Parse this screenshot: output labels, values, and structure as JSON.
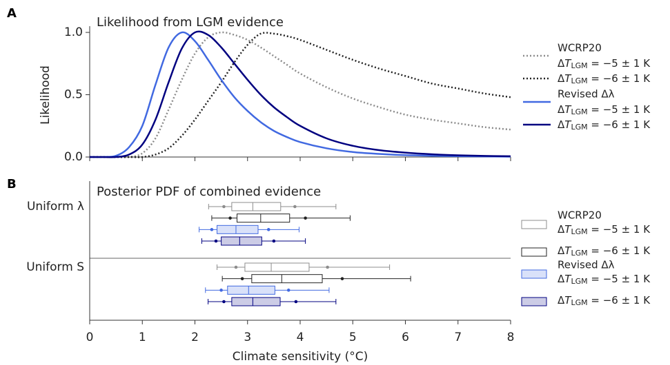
{
  "chart_data": [
    {
      "type": "line",
      "panel_label": "A",
      "title": "Likelihood from LGM evidence",
      "y_label": "Likelihood",
      "x": [
        0,
        0.25,
        0.5,
        0.75,
        1,
        1.25,
        1.5,
        1.75,
        2,
        2.25,
        2.5,
        2.75,
        3,
        3.25,
        3.5,
        3.75,
        4,
        4.5,
        5,
        5.5,
        6,
        6.5,
        7,
        7.5,
        8
      ],
      "xlim": [
        0,
        8
      ],
      "xticks": [
        0,
        1,
        2,
        3,
        4,
        5,
        6,
        7,
        8
      ],
      "ylim": [
        0,
        1.05
      ],
      "yticks": [
        {
          "value": 0,
          "label": "0.0"
        },
        {
          "value": 0.5,
          "label": "0.5"
        },
        {
          "value": 1,
          "label": "1.0"
        }
      ],
      "legend": "right",
      "series": [
        {
          "legend_title": "WCRP20",
          "name": "ΔTLGM = −5 ± 1 K",
          "color": "#8c8c8c",
          "dash": "dotted",
          "values": [
            0,
            0,
            0,
            0,
            0.03,
            0.15,
            0.38,
            0.62,
            0.83,
            0.96,
            1.0,
            0.98,
            0.94,
            0.88,
            0.81,
            0.74,
            0.67,
            0.56,
            0.47,
            0.4,
            0.34,
            0.3,
            0.27,
            0.24,
            0.22
          ]
        },
        {
          "name": "ΔTLGM = −6 ± 1 K",
          "color": "#222222",
          "dash": "dotted",
          "values": [
            0,
            0,
            0,
            0,
            0,
            0.02,
            0.07,
            0.17,
            0.3,
            0.45,
            0.6,
            0.76,
            0.9,
            0.99,
            0.99,
            0.97,
            0.94,
            0.86,
            0.78,
            0.71,
            0.65,
            0.59,
            0.55,
            0.51,
            0.48
          ]
        },
        {
          "legend_title": "Revised Δλ",
          "name": "ΔTLGM = −5 ± 1 K",
          "color": "#4169e1",
          "dash": "solid",
          "values": [
            0,
            0,
            0.01,
            0.08,
            0.25,
            0.58,
            0.88,
            1.0,
            0.93,
            0.78,
            0.62,
            0.48,
            0.37,
            0.28,
            0.21,
            0.16,
            0.12,
            0.07,
            0.04,
            0.025,
            0.015,
            0.01,
            0.007,
            0.005,
            0.003
          ]
        },
        {
          "name": "ΔTLGM = −6 ± 1 K",
          "color": "#000080",
          "dash": "solid",
          "values": [
            0,
            0,
            0,
            0.02,
            0.1,
            0.3,
            0.6,
            0.87,
            1.0,
            0.98,
            0.88,
            0.75,
            0.62,
            0.5,
            0.4,
            0.32,
            0.25,
            0.15,
            0.09,
            0.055,
            0.035,
            0.022,
            0.014,
            0.009,
            0.006
          ]
        }
      ]
    },
    {
      "type": "box",
      "panel_label": "B",
      "title": "Posterior PDF of combined evidence",
      "x_label": "Climate sensitivity (°C)",
      "xlim": [
        0,
        8
      ],
      "xticks": [
        0,
        1,
        2,
        3,
        4,
        5,
        6,
        7,
        8
      ],
      "categories": [
        "Uniform λ",
        "Uniform S"
      ],
      "legend": "right",
      "series": [
        {
          "legend_title": "WCRP20",
          "name": "ΔTLGM = −5 ± 1 K",
          "color": "#8c8c8c",
          "fill": "#ffffff",
          "boxes": [
            {
              "whislo": 2.26,
              "q1": 2.7,
              "med": 3.1,
              "q3": 3.63,
              "whishi": 4.68,
              "dots": [
                2.55,
                3.9
              ]
            },
            {
              "whislo": 2.42,
              "q1": 2.95,
              "med": 3.45,
              "q3": 4.17,
              "whishi": 5.7,
              "dots": [
                2.78,
                4.52
              ]
            }
          ]
        },
        {
          "name": "ΔTLGM = −6 ± 1 K",
          "color": "#222222",
          "fill": "#ffffff",
          "boxes": [
            {
              "whislo": 2.32,
              "q1": 2.8,
              "med": 3.25,
              "q3": 3.8,
              "whishi": 4.95,
              "dots": [
                2.67,
                4.1
              ]
            },
            {
              "whislo": 2.52,
              "q1": 3.08,
              "med": 3.65,
              "q3": 4.42,
              "whishi": 6.1,
              "dots": [
                2.9,
                4.8
              ]
            }
          ]
        },
        {
          "legend_title": "Revised Δλ",
          "name": "ΔTLGM = −5 ± 1 K",
          "color": "#4169e1",
          "fill": "#d9e1f9",
          "boxes": [
            {
              "whislo": 2.08,
              "q1": 2.42,
              "med": 2.78,
              "q3": 3.2,
              "whishi": 3.98,
              "dots": [
                2.32,
                3.4
              ]
            },
            {
              "whislo": 2.2,
              "q1": 2.62,
              "med": 3.02,
              "q3": 3.52,
              "whishi": 4.55,
              "dots": [
                2.5,
                3.78
              ]
            }
          ]
        },
        {
          "name": "ΔTLGM = −6 ± 1 K",
          "color": "#000080",
          "fill": "#cccce6",
          "boxes": [
            {
              "whislo": 2.13,
              "q1": 2.5,
              "med": 2.85,
              "q3": 3.27,
              "whishi": 4.1,
              "dots": [
                2.4,
                3.5
              ]
            },
            {
              "whislo": 2.25,
              "q1": 2.7,
              "med": 3.1,
              "q3": 3.62,
              "whishi": 4.68,
              "dots": [
                2.55,
                3.92
              ]
            }
          ]
        }
      ]
    }
  ]
}
